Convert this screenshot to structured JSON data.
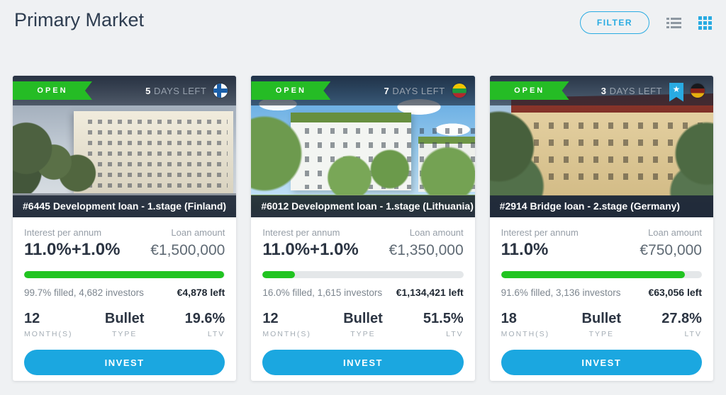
{
  "header": {
    "title": "Primary Market",
    "filter_button": "FILTER"
  },
  "colors": {
    "accent_blue": "#29abe2",
    "progress_green": "#21c421",
    "ribbon_green": "#25bc25",
    "navy": "#2e3d50",
    "page_background": "#eff1f3"
  },
  "cards": [
    {
      "status": "OPEN",
      "days_left_number": "5",
      "days_left_label": "DAYS LEFT",
      "country": "Finland",
      "title": "#6445 Development loan - 1.stage (Finland)",
      "interest_label": "Interest per annum",
      "interest": "11.0%+1.0%",
      "loan_amount_label": "Loan amount",
      "loan_amount": "€1,500,000",
      "progress_percent": 99.7,
      "filled_text": "99.7% filled, 4,682 investors",
      "amount_left": "€4,878 left",
      "term_value": "12",
      "term_label": "MONTH(S)",
      "type_value": "Bullet",
      "type_label": "TYPE",
      "ltv_value": "19.6%",
      "ltv_label": "LTV",
      "invest_label": "INVEST",
      "bookmarked": false
    },
    {
      "status": "OPEN",
      "days_left_number": "7",
      "days_left_label": "DAYS LEFT",
      "country": "Lithuania",
      "title": "#6012 Development loan - 1.stage (Lithuania)",
      "interest_label": "Interest per annum",
      "interest": "11.0%+1.0%",
      "loan_amount_label": "Loan amount",
      "loan_amount": "€1,350,000",
      "progress_percent": 16.0,
      "filled_text": "16.0% filled, 1,615 investors",
      "amount_left": "€1,134,421 left",
      "term_value": "12",
      "term_label": "MONTH(S)",
      "type_value": "Bullet",
      "type_label": "TYPE",
      "ltv_value": "51.5%",
      "ltv_label": "LTV",
      "invest_label": "INVEST",
      "bookmarked": false
    },
    {
      "status": "OPEN",
      "days_left_number": "3",
      "days_left_label": "DAYS LEFT",
      "country": "Germany",
      "title": "#2914 Bridge loan - 2.stage (Germany)",
      "interest_label": "Interest per annum",
      "interest": "11.0%",
      "loan_amount_label": "Loan amount",
      "loan_amount": "€750,000",
      "progress_percent": 91.6,
      "filled_text": "91.6% filled, 3,136 investors",
      "amount_left": "€63,056 left",
      "term_value": "18",
      "term_label": "MONTH(S)",
      "type_value": "Bullet",
      "type_label": "TYPE",
      "ltv_value": "27.8%",
      "ltv_label": "LTV",
      "invest_label": "INVEST",
      "bookmarked": true
    }
  ]
}
